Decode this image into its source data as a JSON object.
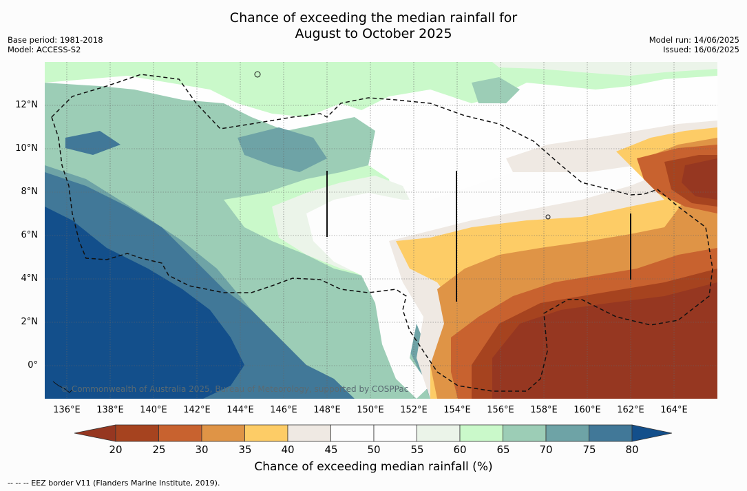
{
  "title": {
    "line1": "Chance of exceeding the median rainfall for",
    "line2": "August to October 2025"
  },
  "meta": {
    "base_period": "Base period: 1981-2018",
    "model": "Model: ACCESS-S2",
    "model_run": "Model run: 14/06/2025",
    "issued": "Issued: 16/06/2025"
  },
  "map": {
    "copyright": "© Commonwealth of Australia 2025, Bureau of Meteorology, supported by COSPPac",
    "lat_labels": [
      "12°N",
      "10°N",
      "8°N",
      "6°N",
      "4°N",
      "2°N",
      "0°"
    ],
    "lon_labels": [
      "136°E",
      "138°E",
      "140°E",
      "142°E",
      "144°E",
      "146°E",
      "148°E",
      "150°E",
      "152°E",
      "154°E",
      "156°E",
      "158°E",
      "160°E",
      "162°E",
      "164°E"
    ]
  },
  "legend": {
    "ticks": [
      "20",
      "25",
      "30",
      "35",
      "40",
      "45",
      "50",
      "55",
      "60",
      "65",
      "70",
      "75",
      "80"
    ],
    "colors": [
      "#a6431f",
      "#c8622f",
      "#df9446",
      "#fdcc66",
      "#efe9e3",
      "#fdfdfd",
      "#fdfdfd",
      "#ebf4e9",
      "#caf9ca",
      "#9ccdb6",
      "#6ea3a6",
      "#417898"
    ],
    "under_color": "#963721",
    "over_color": "#134f8b",
    "label": "Chance of exceeding median rainfall (%)",
    "footnote": "--  --  -- EEZ border V11 (Flanders Marine Institute, 2019)."
  }
}
